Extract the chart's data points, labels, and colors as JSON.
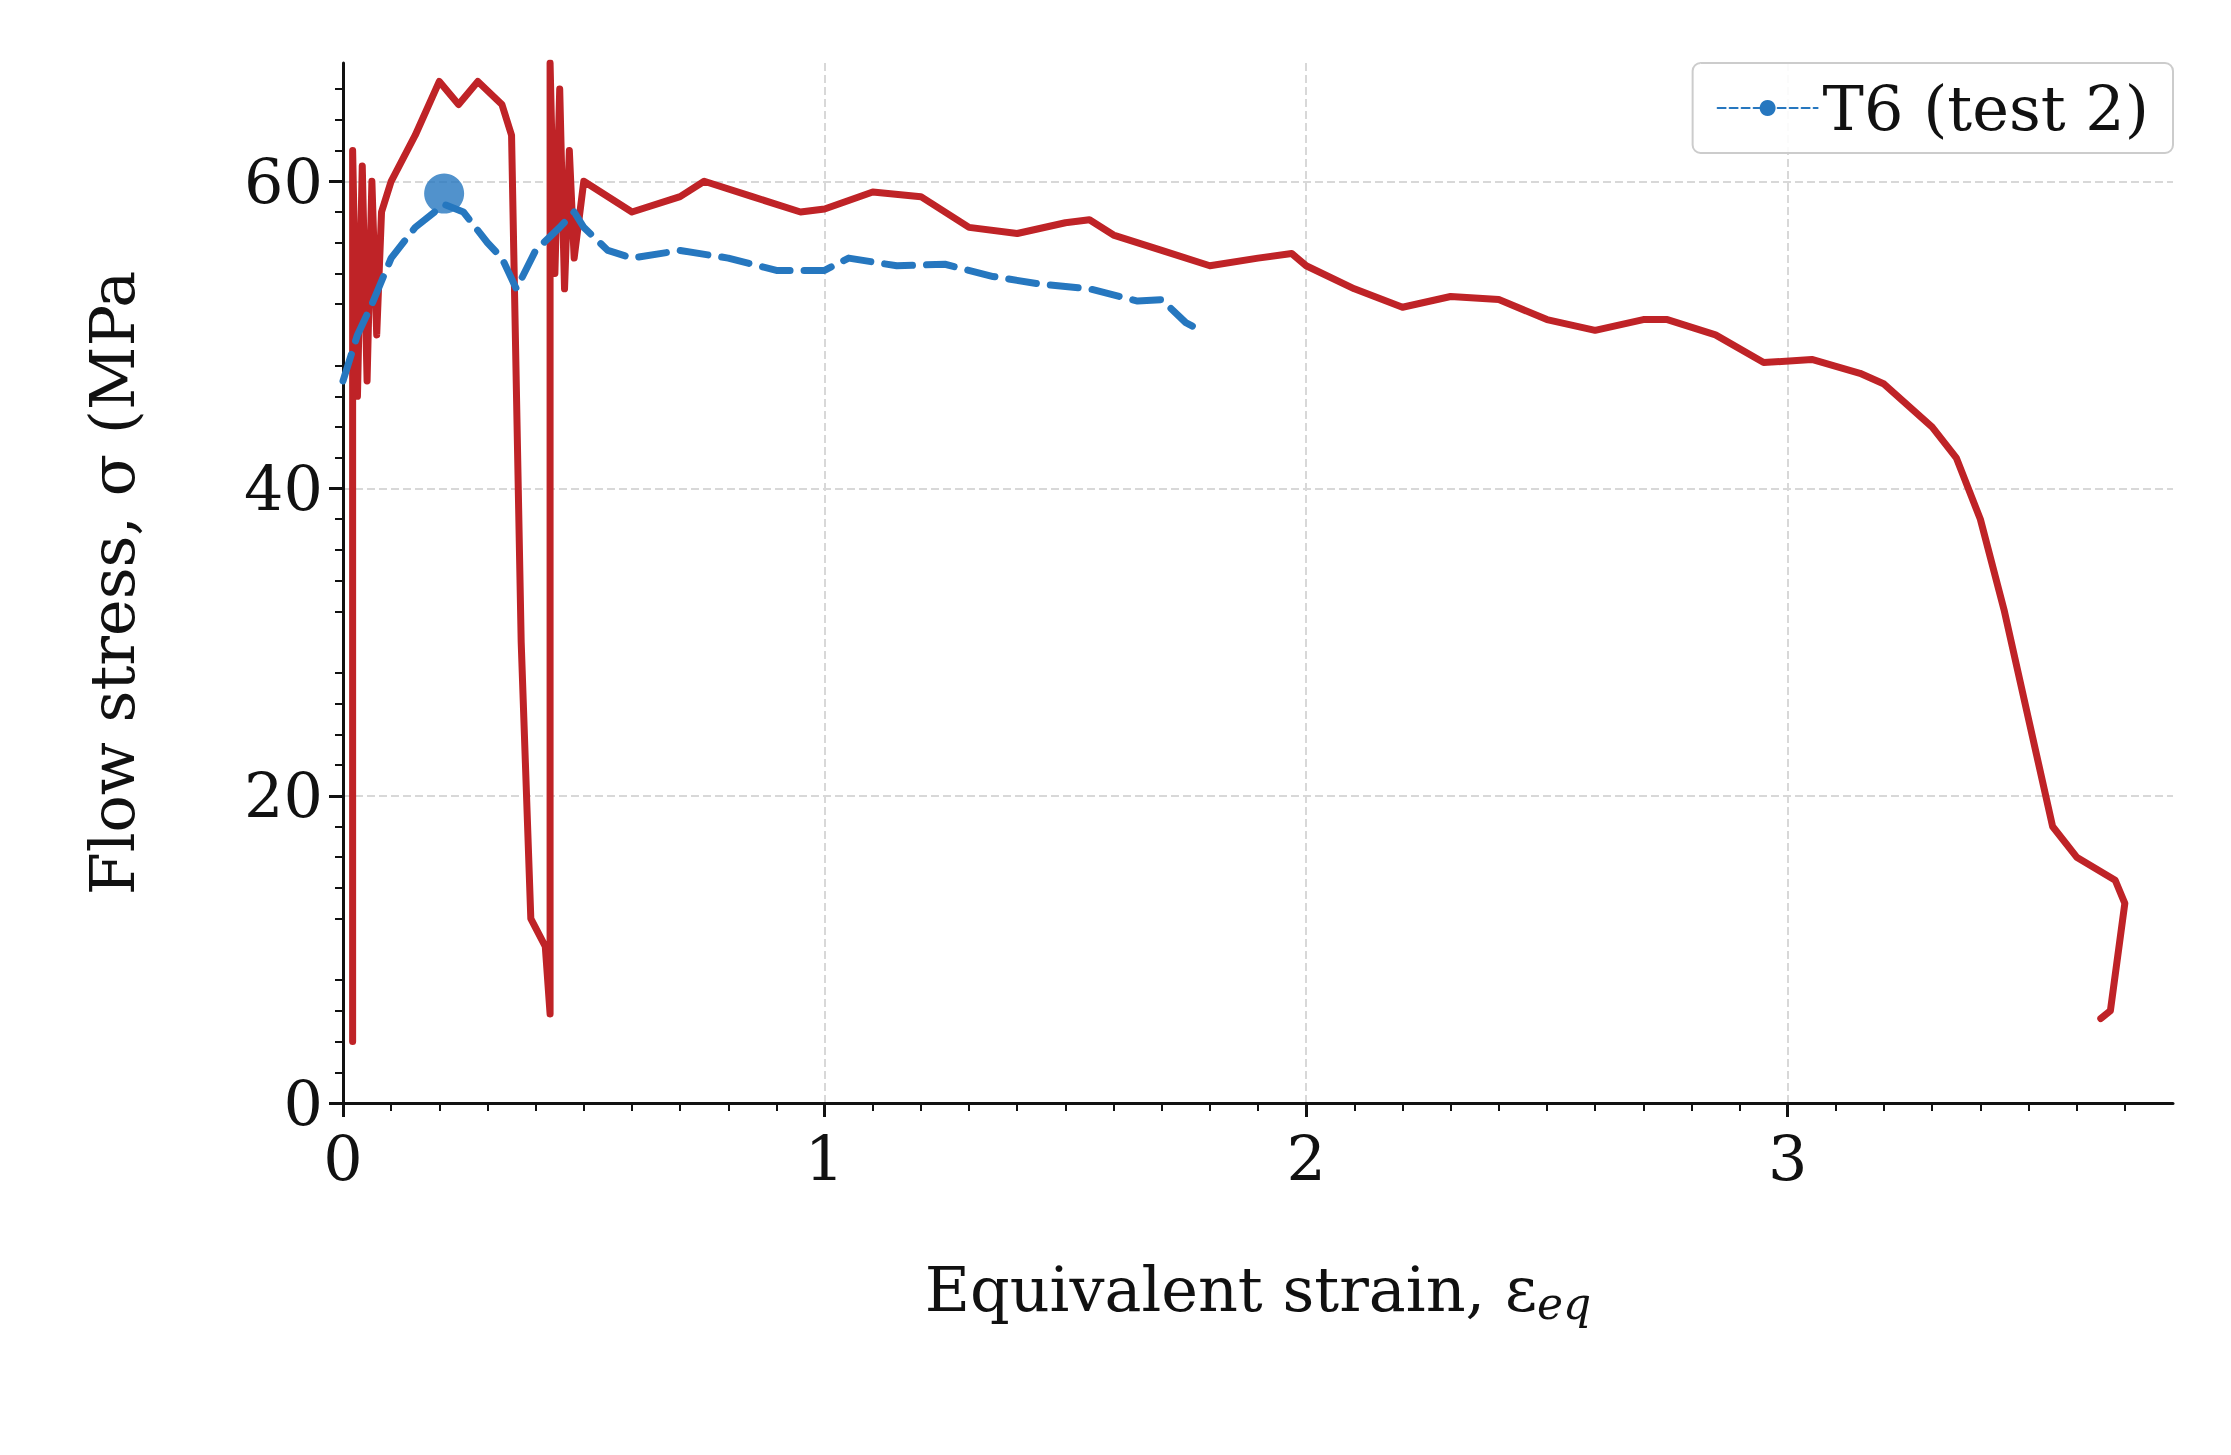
{
  "chart_data": {
    "type": "line",
    "xlabel": "Equivalent strain, ε$_{eq}$",
    "ylabel": "Flow stress, σ (MPa",
    "xlim": [
      0,
      3.8
    ],
    "ylim": [
      0,
      67.7
    ],
    "xticks": [
      0,
      1,
      2,
      3
    ],
    "yticks": [
      0,
      20,
      40,
      60
    ],
    "grid": true,
    "legend": "top right",
    "series": [
      {
        "color": "#bf2327",
        "line_style": "solid",
        "marker": "none",
        "x": [
          0.02,
          0.02,
          0.03,
          0.04,
          0.05,
          0.06,
          0.07,
          0.08,
          0.1,
          0.15,
          0.2,
          0.24,
          0.28,
          0.33,
          0.35,
          0.37,
          0.39,
          0.42,
          0.43,
          0.43,
          0.44,
          0.45,
          0.46,
          0.47,
          0.48,
          0.5,
          0.6,
          0.7,
          0.75,
          0.85,
          0.95,
          1.0,
          1.1,
          1.2,
          1.3,
          1.4,
          1.5,
          1.55,
          1.6,
          1.7,
          1.8,
          1.9,
          1.97,
          2.0,
          2.1,
          2.2,
          2.3,
          2.4,
          2.5,
          2.6,
          2.7,
          2.75,
          2.85,
          2.95,
          3.05,
          3.15,
          3.2,
          3.3,
          3.35,
          3.4,
          3.45,
          3.5,
          3.55,
          3.6,
          3.68,
          3.7,
          3.67,
          3.65
        ],
        "values": [
          4,
          62,
          46,
          61,
          47,
          60,
          50,
          58,
          60,
          63,
          66.5,
          65,
          66.5,
          65,
          63,
          30,
          12,
          10.2,
          5.8,
          67.7,
          54,
          66,
          53,
          62,
          55,
          60,
          58,
          59,
          60,
          59,
          58,
          58.2,
          59.3,
          59,
          57,
          56.6,
          57.3,
          57.5,
          56.5,
          55.5,
          54.5,
          55,
          55.3,
          54.5,
          53,
          51.8,
          52.5,
          52.3,
          51,
          50.3,
          51,
          51,
          50,
          48.2,
          48.4,
          47.5,
          46.8,
          44,
          42,
          38,
          32,
          25,
          18,
          16,
          14.5,
          13,
          6,
          5.5
        ]
      },
      {
        "name": "T6 (test 2)",
        "color": "#2677bf",
        "line_style": "dashed",
        "marker": "none",
        "x": [
          0.0,
          0.03,
          0.06,
          0.1,
          0.15,
          0.21,
          0.25,
          0.3,
          0.33,
          0.36,
          0.4,
          0.45,
          0.48,
          0.5,
          0.55,
          0.6,
          0.7,
          0.8,
          0.9,
          1.0,
          1.05,
          1.15,
          1.25,
          1.35,
          1.45,
          1.55,
          1.65,
          1.7,
          1.75,
          1.78
        ],
        "values": [
          47,
          50,
          52,
          55,
          57,
          58.5,
          58,
          56,
          55,
          53,
          55.5,
          57,
          58,
          57,
          55.5,
          55,
          55.5,
          55,
          54.2,
          54.2,
          55,
          54.5,
          54.6,
          53.8,
          53.3,
          53,
          52.2,
          52.3,
          50.8,
          50.3
        ]
      },
      {
        "type": "scatter",
        "color": "#2677bf",
        "marker": "circle",
        "x": [
          0.21
        ],
        "values": [
          59.2
        ]
      }
    ]
  }
}
